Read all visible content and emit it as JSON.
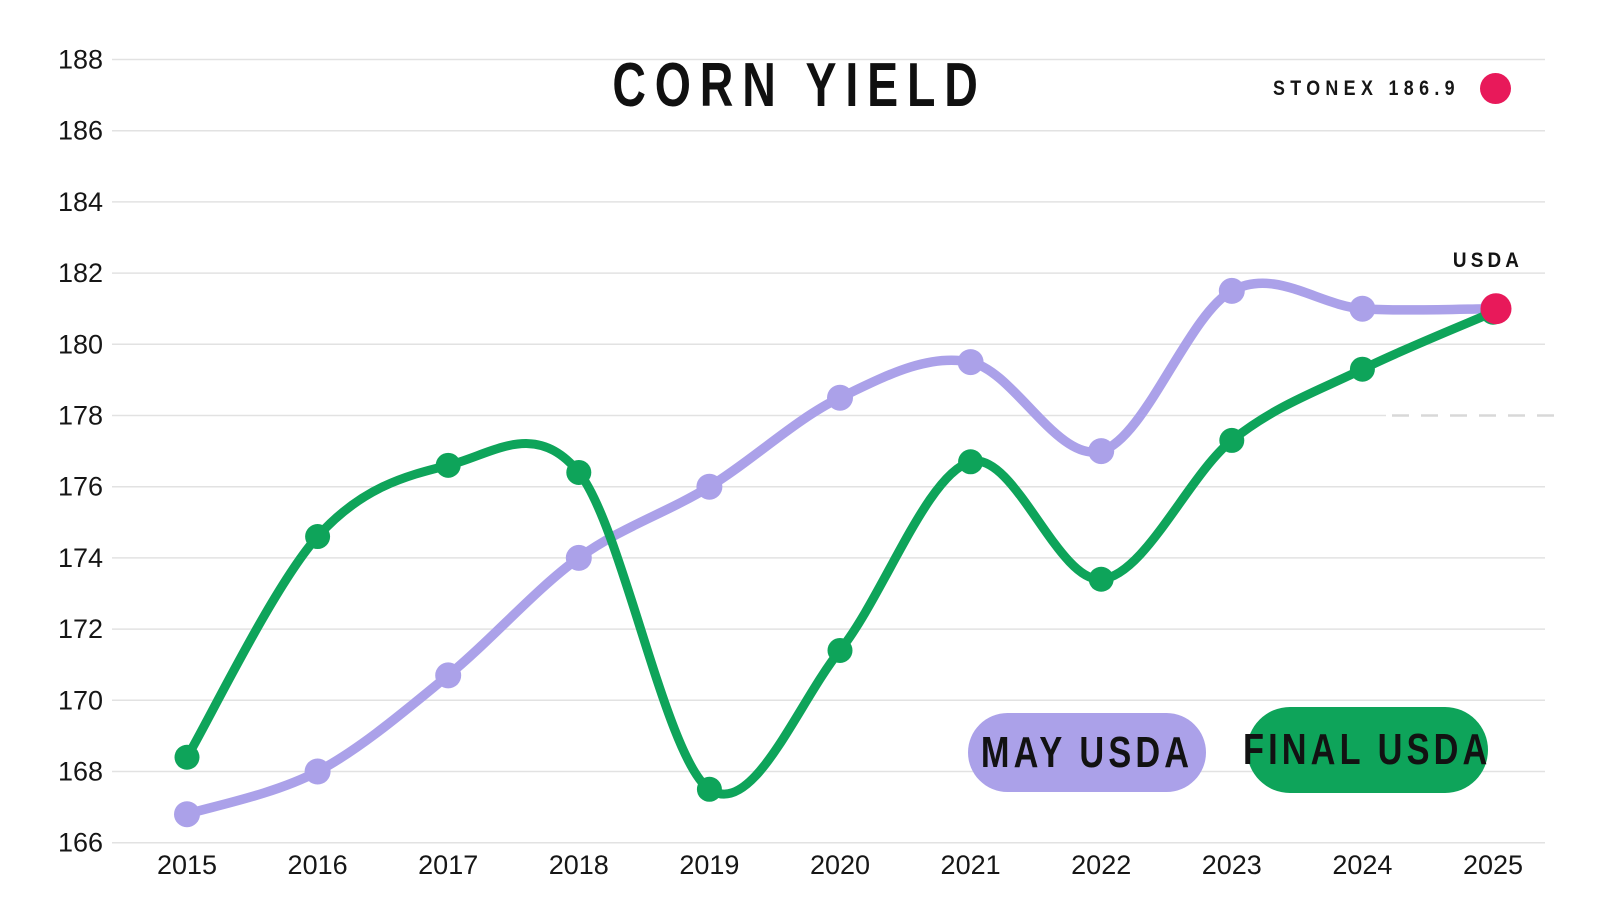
{
  "header": {
    "title": "CORN YIELD"
  },
  "annotations": {
    "stonex": {
      "label": "STONEX 186.9",
      "value": 186.9,
      "dot_color": "#E8195A"
    },
    "usda_2025": {
      "label": "USDA",
      "dot_color": "#E8195A"
    }
  },
  "legend": {
    "items": [
      {
        "label": "MAY USDA",
        "color": "#ABA1E9"
      },
      {
        "label": "FINAL USDA",
        "color": "#0EA45A"
      }
    ]
  },
  "chart_data": {
    "type": "line",
    "title": "CORN YIELD",
    "categories": [
      "2015",
      "2016",
      "2017",
      "2018",
      "2019",
      "2020",
      "2021",
      "2022",
      "2023",
      "2024",
      "2025"
    ],
    "series": [
      {
        "name": "MAY USDA",
        "color": "#ABA1E9",
        "values": [
          166.8,
          168.0,
          170.7,
          174.0,
          176.0,
          178.5,
          179.5,
          177.0,
          181.5,
          181.0,
          181.0
        ]
      },
      {
        "name": "FINAL USDA",
        "color": "#0EA45A",
        "values": [
          168.4,
          174.6,
          176.6,
          176.4,
          167.5,
          171.4,
          176.7,
          173.4,
          177.3,
          179.3,
          180.9
        ]
      }
    ],
    "highlight_point": {
      "label": "USDA",
      "category": "2025",
      "value": 181.0,
      "color": "#E8195A"
    },
    "external_estimate": {
      "label": "STONEX 186.9",
      "value": 186.9,
      "color": "#E8195A"
    },
    "ylim": [
      166,
      188
    ],
    "ytick_step": 2,
    "grid": "horizontal",
    "gridline_color": "#E2E2E2",
    "tick_text_color": "#161616",
    "legend_position": "bottom-right-inside"
  }
}
